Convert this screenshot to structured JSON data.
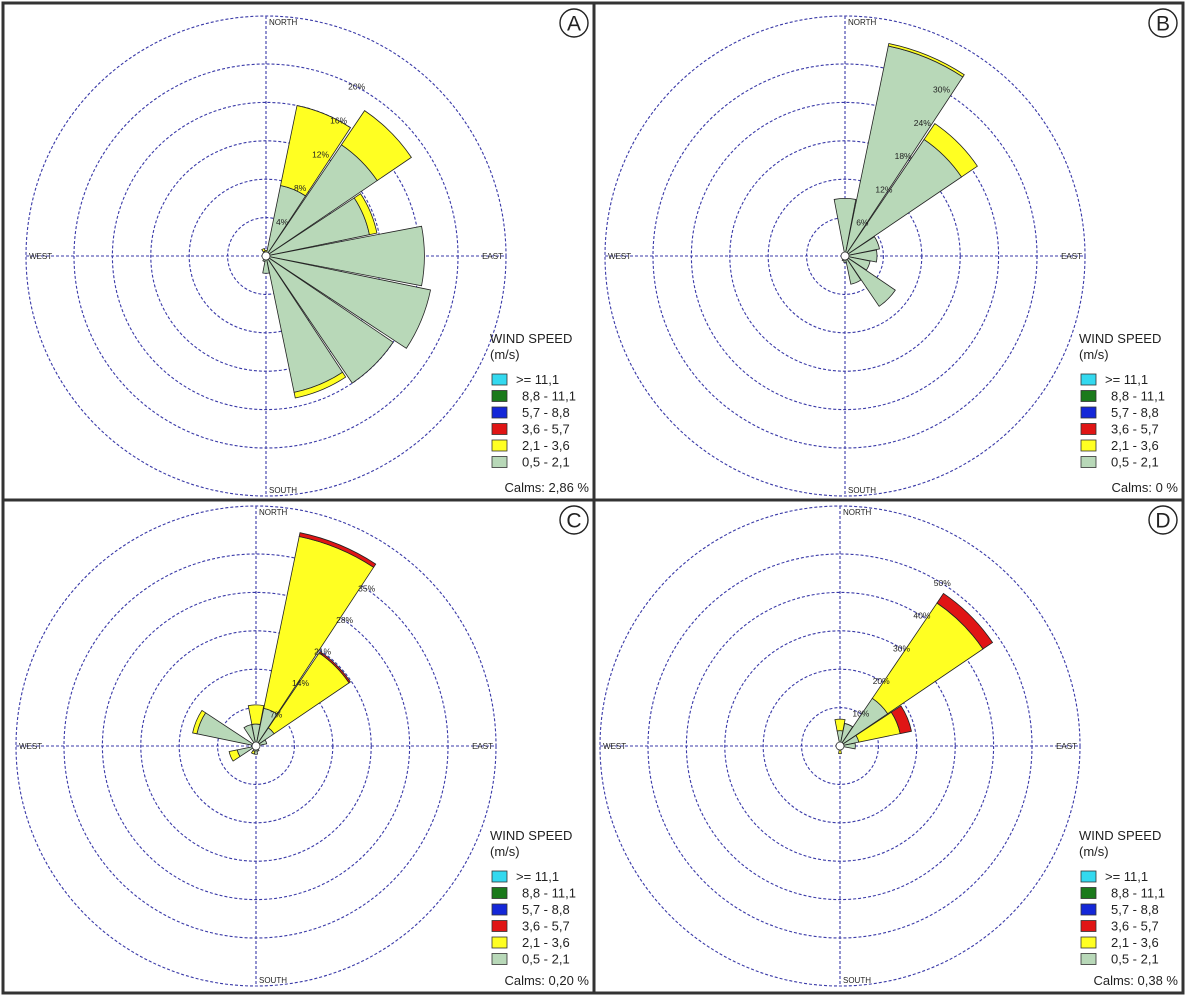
{
  "figure": {
    "colors": {
      "grid": "#3a3aa8",
      "border": "#333333"
    }
  },
  "legend": {
    "title_line1": "WIND SPEED",
    "title_line2": "(m/s)",
    "classes": [
      {
        "label": ">= 11,1",
        "color": "#33d9ef"
      },
      {
        "label": "8,8 - 11,1",
        "color": "#1b7a1b"
      },
      {
        "label": "5,7 - 8,8",
        "color": "#1427d8"
      },
      {
        "label": "3,6 - 5,7",
        "color": "#e01515"
      },
      {
        "label": "2,1 - 3,6",
        "color": "#ffff22"
      },
      {
        "label": "0,5 - 2,1",
        "color": "#b8d8b8"
      }
    ]
  },
  "directions": [
    "NORTH",
    "EAST",
    "SOUTH",
    "WEST"
  ],
  "chart_data": [
    {
      "type": "windrose",
      "panel": "A",
      "calms": "Calms: 2,86 %",
      "radial_max": 25,
      "ring_labels": [
        "4%",
        "8%",
        "12%",
        "16%",
        "20%"
      ],
      "ring_values": [
        4,
        8,
        12,
        16,
        20
      ],
      "sector_width_deg": 22.5,
      "sectors": [
        {
          "direction_deg": 0,
          "speed_classes": {
            "0,5 - 2,1": 0.3,
            "2,1 - 3,6": 0.3
          }
        },
        {
          "direction_deg": 22.5,
          "speed_classes": {
            "0,5 - 2,1": 7.5,
            "2,1 - 3,6": 8.5
          }
        },
        {
          "direction_deg": 45,
          "speed_classes": {
            "0,5 - 2,1": 14.0,
            "2,1 - 3,6": 4.3
          }
        },
        {
          "direction_deg": 67.5,
          "speed_classes": {
            "0,5 - 2,1": 11.0,
            "2,1 - 3,6": 0.8
          }
        },
        {
          "direction_deg": 90,
          "speed_classes": {
            "0,5 - 2,1": 16.5
          }
        },
        {
          "direction_deg": 112.5,
          "speed_classes": {
            "0,5 - 2,1": 17.5
          }
        },
        {
          "direction_deg": 135,
          "speed_classes": {
            "0,5 - 2,1": 16.0
          }
        },
        {
          "direction_deg": 157.5,
          "speed_classes": {
            "0,5 - 2,1": 14.5,
            "2,1 - 3,6": 0.6
          }
        },
        {
          "direction_deg": 180,
          "speed_classes": {
            "0,5 - 2,1": 1.8
          }
        },
        {
          "direction_deg": 202.5,
          "speed_classes": {
            "0,5 - 2,1": 0.6
          }
        },
        {
          "direction_deg": 337.5,
          "speed_classes": {
            "0,5 - 2,1": 0.5,
            "2,1 - 3,6": 0.3
          }
        }
      ]
    },
    {
      "type": "windrose",
      "panel": "B",
      "calms": "Calms: 0 %",
      "radial_max": 37.5,
      "ring_labels": [
        "6%",
        "12%",
        "18%",
        "24%",
        "30%"
      ],
      "ring_values": [
        6,
        12,
        18,
        24,
        30
      ],
      "sector_width_deg": 22.5,
      "sectors": [
        {
          "direction_deg": 0,
          "speed_classes": {
            "0,5 - 2,1": 9.0
          }
        },
        {
          "direction_deg": 22.5,
          "speed_classes": {
            "0,5 - 2,1": 33.5,
            "2,1 - 3,6": 0.4
          }
        },
        {
          "direction_deg": 45,
          "speed_classes": {
            "0,5 - 2,1": 22.0,
            "2,1 - 3,6": 3.0
          }
        },
        {
          "direction_deg": 67.5,
          "speed_classes": {
            "0,5 - 2,1": 5.5
          }
        },
        {
          "direction_deg": 90,
          "speed_classes": {
            "0,5 - 2,1": 5.0
          }
        },
        {
          "direction_deg": 112.5,
          "speed_classes": {
            "0,5 - 2,1": 4.0
          }
        },
        {
          "direction_deg": 135,
          "speed_classes": {
            "0,5 - 2,1": 9.5
          }
        },
        {
          "direction_deg": 157.5,
          "speed_classes": {
            "0,5 - 2,1": 4.5
          }
        },
        {
          "direction_deg": 180,
          "speed_classes": {
            "0,5 - 2,1": 1.0
          }
        },
        {
          "direction_deg": 202.5,
          "speed_classes": {
            "0,5 - 2,1": 0.8
          }
        },
        {
          "direction_deg": 337.5,
          "speed_classes": {
            "0,5 - 2,1": 0.6
          }
        }
      ]
    },
    {
      "type": "windrose",
      "panel": "C",
      "calms": "Calms: 0,20 %",
      "radial_max": 43.75,
      "ring_labels": [
        "7%",
        "14%",
        "21%",
        "28%",
        "35%"
      ],
      "ring_values": [
        7,
        14,
        21,
        28,
        35
      ],
      "sector_width_deg": 22.5,
      "sectors": [
        {
          "direction_deg": 0,
          "speed_classes": {
            "0,5 - 2,1": 4.0,
            "2,1 - 3,6": 3.5
          }
        },
        {
          "direction_deg": 22.5,
          "speed_classes": {
            "0,5 - 2,1": 7.0,
            "2,1 - 3,6": 32.0,
            "3,6 - 5,7": 0.7
          }
        },
        {
          "direction_deg": 45,
          "speed_classes": {
            "0,5 - 2,1": 4.0,
            "2,1 - 3,6": 16.5,
            "3,6 - 5,7": 0.3
          }
        },
        {
          "direction_deg": 67.5,
          "speed_classes": {
            "0,5 - 2,1": 2.0
          }
        },
        {
          "direction_deg": 157.5,
          "speed_classes": {
            "0,5 - 2,1": 1.0
          }
        },
        {
          "direction_deg": 180,
          "speed_classes": {
            "0,5 - 2,1": 1.5
          }
        },
        {
          "direction_deg": 202.5,
          "speed_classes": {
            "0,5 - 2,1": 1.0,
            "2,1 - 3,6": 0.5
          }
        },
        {
          "direction_deg": 247.5,
          "speed_classes": {
            "0,5 - 2,1": 3.5,
            "2,1 - 3,6": 1.5
          }
        },
        {
          "direction_deg": 292.5,
          "speed_classes": {
            "0,5 - 2,1": 11.0,
            "2,1 - 3,6": 0.8
          }
        },
        {
          "direction_deg": 337.5,
          "speed_classes": {
            "0,5 - 2,1": 4.0
          }
        }
      ]
    },
    {
      "type": "windrose",
      "panel": "D",
      "calms": "Calms: 0,38 %",
      "radial_max": 62.5,
      "ring_labels": [
        "10%",
        "20%",
        "30%",
        "40%",
        "50%"
      ],
      "ring_values": [
        10,
        20,
        30,
        40,
        50
      ],
      "sector_width_deg": 22.5,
      "sectors": [
        {
          "direction_deg": 0,
          "speed_classes": {
            "0,5 - 2,1": 4.0,
            "2,1 - 3,6": 3.0
          }
        },
        {
          "direction_deg": 22.5,
          "speed_classes": {
            "0,5 - 2,1": 6.0
          }
        },
        {
          "direction_deg": 45,
          "speed_classes": {
            "0,5 - 2,1": 15.0,
            "2,1 - 3,6": 30.0,
            "3,6 - 5,7": 3.0
          }
        },
        {
          "direction_deg": 67.5,
          "speed_classes": {
            "0,5 - 2,1": 5.0,
            "2,1 - 3,6": 11.0,
            "3,6 - 5,7": 3.0
          }
        },
        {
          "direction_deg": 90,
          "speed_classes": {
            "0,5 - 2,1": 4.0
          }
        },
        {
          "direction_deg": 112.5,
          "speed_classes": {
            "0,5 - 2,1": 1.0
          }
        },
        {
          "direction_deg": 180,
          "speed_classes": {
            "0,5 - 2,1": 1.0,
            "2,1 - 3,6": 1.0
          }
        },
        {
          "direction_deg": 270,
          "speed_classes": {
            "0,5 - 2,1": 1.0
          }
        }
      ]
    }
  ]
}
